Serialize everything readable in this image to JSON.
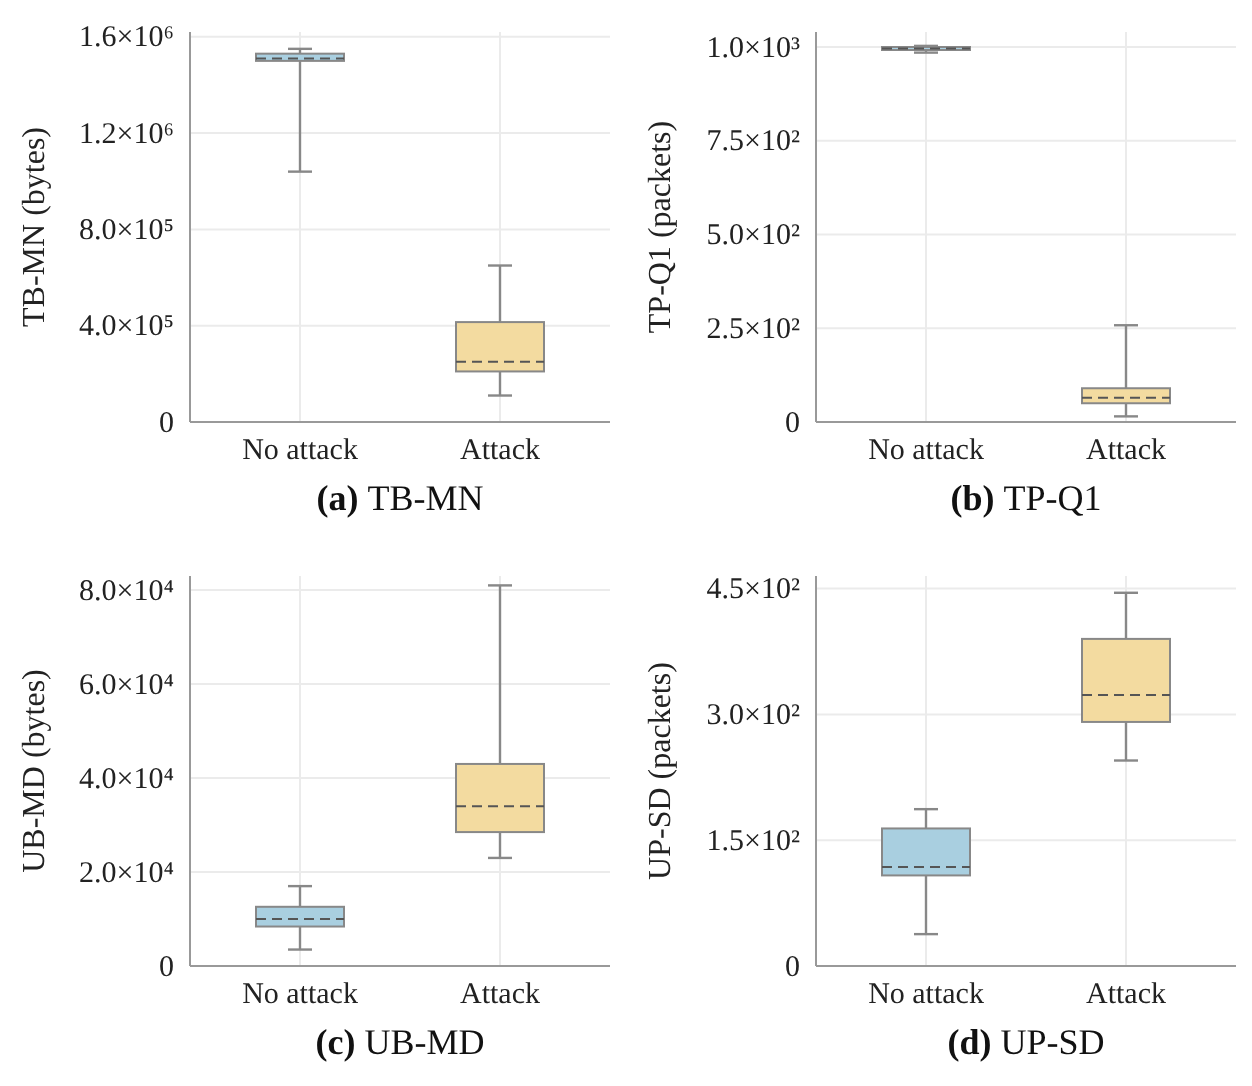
{
  "chart_data": [
    {
      "type": "box",
      "title": "(a) TB-MN",
      "ylabel": "TB-MN (bytes)",
      "categories": [
        "No attack",
        "Attack"
      ],
      "colors": [
        "#a9cfe0",
        "#f3dba0"
      ],
      "grid": true,
      "ylim": [
        0,
        1620000
      ],
      "yticks": [
        {
          "value": 0,
          "label": "0"
        },
        {
          "value": 400000,
          "label": "4.0×10⁵"
        },
        {
          "value": 800000,
          "label": "8.0×10⁵"
        },
        {
          "value": 1200000,
          "label": "1.2×10⁶"
        },
        {
          "value": 1600000,
          "label": "1.6×10⁶"
        }
      ],
      "boxes": [
        {
          "low": 1040000,
          "q1": 1500000,
          "median": 1510000,
          "q3": 1530000,
          "high": 1550000
        },
        {
          "low": 110000,
          "q1": 210000,
          "median": 250000,
          "q3": 415000,
          "high": 650000
        }
      ]
    },
    {
      "type": "box",
      "title": "(b) TP-Q1",
      "ylabel": "TP-Q1 (packets)",
      "categories": [
        "No attack",
        "Attack"
      ],
      "colors": [
        "#a9cfe0",
        "#f3dba0"
      ],
      "grid": true,
      "ylim": [
        0,
        1040
      ],
      "yticks": [
        {
          "value": 0,
          "label": "0"
        },
        {
          "value": 250,
          "label": "2.5×10²"
        },
        {
          "value": 500,
          "label": "5.0×10²"
        },
        {
          "value": 750,
          "label": "7.5×10²"
        },
        {
          "value": 1000,
          "label": "1.0×10³"
        }
      ],
      "boxes": [
        {
          "low": 985,
          "q1": 992,
          "median": 996,
          "q3": 1000,
          "high": 1003
        },
        {
          "low": 15,
          "q1": 50,
          "median": 65,
          "q3": 90,
          "high": 258
        }
      ]
    },
    {
      "type": "box",
      "title": "(c) UB-MD",
      "ylabel": "UB-MD (bytes)",
      "categories": [
        "No attack",
        "Attack"
      ],
      "colors": [
        "#a9cfe0",
        "#f3dba0"
      ],
      "grid": true,
      "ylim": [
        0,
        83000
      ],
      "yticks": [
        {
          "value": 0,
          "label": "0"
        },
        {
          "value": 20000,
          "label": "2.0×10⁴"
        },
        {
          "value": 40000,
          "label": "4.0×10⁴"
        },
        {
          "value": 60000,
          "label": "6.0×10⁴"
        },
        {
          "value": 80000,
          "label": "8.0×10⁴"
        }
      ],
      "boxes": [
        {
          "low": 3500,
          "q1": 8400,
          "median": 10000,
          "q3": 12600,
          "high": 17000
        },
        {
          "low": 23000,
          "q1": 28500,
          "median": 34000,
          "q3": 43000,
          "high": 81000
        }
      ]
    },
    {
      "type": "box",
      "title": "(d) UP-SD",
      "ylabel": "UP-SD (packets)",
      "categories": [
        "No attack",
        "Attack"
      ],
      "colors": [
        "#a9cfe0",
        "#f3dba0"
      ],
      "grid": true,
      "ylim": [
        0,
        465
      ],
      "yticks": [
        {
          "value": 0,
          "label": "0"
        },
        {
          "value": 150,
          "label": "1.5×10²"
        },
        {
          "value": 300,
          "label": "3.0×10²"
        },
        {
          "value": 450,
          "label": "4.5×10²"
        }
      ],
      "boxes": [
        {
          "low": 38,
          "q1": 108,
          "median": 118,
          "q3": 164,
          "high": 187
        },
        {
          "low": 245,
          "q1": 291,
          "median": 323,
          "q3": 390,
          "high": 445
        }
      ]
    }
  ]
}
